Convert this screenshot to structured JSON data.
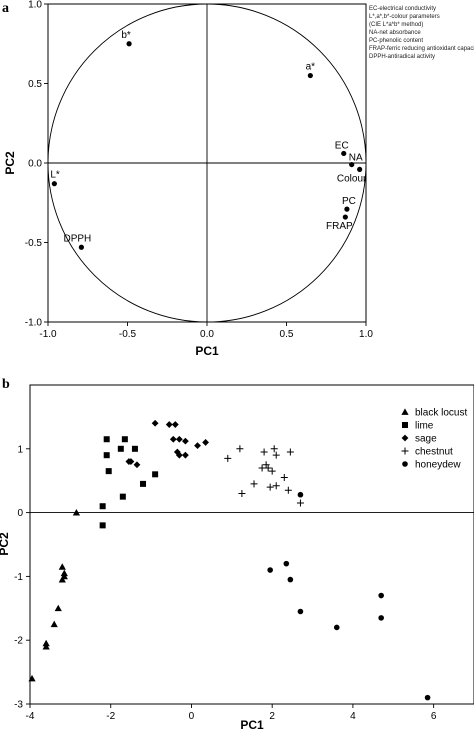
{
  "figure": {
    "panel_a_letter": "a",
    "panel_b_letter": "b"
  },
  "chart_data": [
    {
      "type": "scatter",
      "panel": "a",
      "xlabel": "PC1",
      "ylabel": "PC2",
      "xlim": [
        -1.0,
        1.0
      ],
      "ylim": [
        -1.0,
        1.0
      ],
      "xticks": [
        "-1.0",
        "-0.5",
        "0.0",
        "0.5",
        "1.0"
      ],
      "yticks": [
        "1.0",
        "0.5",
        "0.0",
        "-0.5",
        "-1.0"
      ],
      "unit_circle": true,
      "reference_lines": [
        0,
        0
      ],
      "legend_notes": [
        "EC-electrical conductivity",
        "L*,a*,b*-colour parameters",
        "(CIE L*a*b* method)",
        "NA-net absorbance",
        "PC-phenolic content",
        "FRAP-ferric reducing antioxidant capacity",
        "DPPH-antiradical activity"
      ],
      "points": [
        {
          "label": "b*",
          "x": -0.49,
          "y": 0.75
        },
        {
          "label": "a*",
          "x": 0.65,
          "y": 0.55
        },
        {
          "label": "EC",
          "x": 0.86,
          "y": 0.06
        },
        {
          "label": "NA",
          "x": 0.91,
          "y": -0.01
        },
        {
          "label": "Colour",
          "x": 0.96,
          "y": -0.04
        },
        {
          "label": "L*",
          "x": -0.96,
          "y": -0.13
        },
        {
          "label": "PC",
          "x": 0.88,
          "y": -0.29
        },
        {
          "label": "FRAP",
          "x": 0.87,
          "y": -0.34
        },
        {
          "label": "DPPH",
          "x": -0.79,
          "y": -0.53
        }
      ]
    },
    {
      "type": "scatter",
      "panel": "b",
      "xlabel": "PC1",
      "ylabel": "PC2",
      "xlim": [
        -4,
        7
      ],
      "ylim": [
        -3,
        2
      ],
      "xticks": [
        "-4",
        "-2",
        "0",
        "2",
        "4",
        "6"
      ],
      "yticks": [
        "1",
        "0",
        "-1",
        "-2",
        "-3"
      ],
      "zero_line": true,
      "legend_position": "top-right",
      "series": [
        {
          "name": "black locust",
          "marker": "triangle",
          "points": [
            [
              -3.95,
              -2.6
            ],
            [
              -3.6,
              -2.1
            ],
            [
              -3.6,
              -2.05
            ],
            [
              -3.4,
              -1.75
            ],
            [
              -3.3,
              -1.5
            ],
            [
              -3.2,
              -1.05
            ],
            [
              -3.15,
              -1.0
            ],
            [
              -3.15,
              -0.95
            ],
            [
              -3.2,
              -0.85
            ],
            [
              -2.85,
              0.0
            ]
          ]
        },
        {
          "name": "lime",
          "marker": "square",
          "points": [
            [
              -2.2,
              -0.2
            ],
            [
              -2.2,
              0.1
            ],
            [
              -2.05,
              0.65
            ],
            [
              -2.1,
              0.9
            ],
            [
              -2.1,
              1.15
            ],
            [
              -1.75,
              1.0
            ],
            [
              -1.65,
              1.15
            ],
            [
              -1.7,
              0.25
            ],
            [
              -1.4,
              1.0
            ],
            [
              -1.2,
              0.45
            ],
            [
              -0.9,
              0.6
            ]
          ]
        },
        {
          "name": "sage",
          "marker": "diamond",
          "points": [
            [
              -1.55,
              0.8
            ],
            [
              -1.5,
              0.8
            ],
            [
              -1.35,
              0.75
            ],
            [
              -0.9,
              1.4
            ],
            [
              -0.55,
              1.38
            ],
            [
              -0.4,
              1.38
            ],
            [
              -0.3,
              1.15
            ],
            [
              -0.45,
              1.15
            ],
            [
              -0.35,
              0.95
            ],
            [
              -0.3,
              0.9
            ],
            [
              -0.15,
              0.9
            ],
            [
              -0.15,
              1.12
            ],
            [
              0.15,
              1.05
            ],
            [
              0.35,
              1.1
            ]
          ]
        },
        {
          "name": "chestnut",
          "marker": "plus",
          "points": [
            [
              0.9,
              0.85
            ],
            [
              1.2,
              1.0
            ],
            [
              1.25,
              0.3
            ],
            [
              1.55,
              0.45
            ],
            [
              1.75,
              0.7
            ],
            [
              1.8,
              0.95
            ],
            [
              1.85,
              0.75
            ],
            [
              1.9,
              0.7
            ],
            [
              1.95,
              0.4
            ],
            [
              2.0,
              0.65
            ],
            [
              2.05,
              1.0
            ],
            [
              2.1,
              0.9
            ],
            [
              2.1,
              0.42
            ],
            [
              2.3,
              0.55
            ],
            [
              2.4,
              0.35
            ],
            [
              2.45,
              0.95
            ],
            [
              2.7,
              0.15
            ]
          ]
        },
        {
          "name": "honeydew",
          "marker": "circle",
          "points": [
            [
              1.95,
              -0.9
            ],
            [
              2.35,
              -0.8
            ],
            [
              2.45,
              -1.05
            ],
            [
              2.7,
              -1.55
            ],
            [
              2.7,
              0.28
            ],
            [
              3.6,
              -1.8
            ],
            [
              4.7,
              -1.65
            ],
            [
              4.7,
              -1.3
            ],
            [
              5.85,
              -2.9
            ]
          ]
        }
      ]
    }
  ]
}
